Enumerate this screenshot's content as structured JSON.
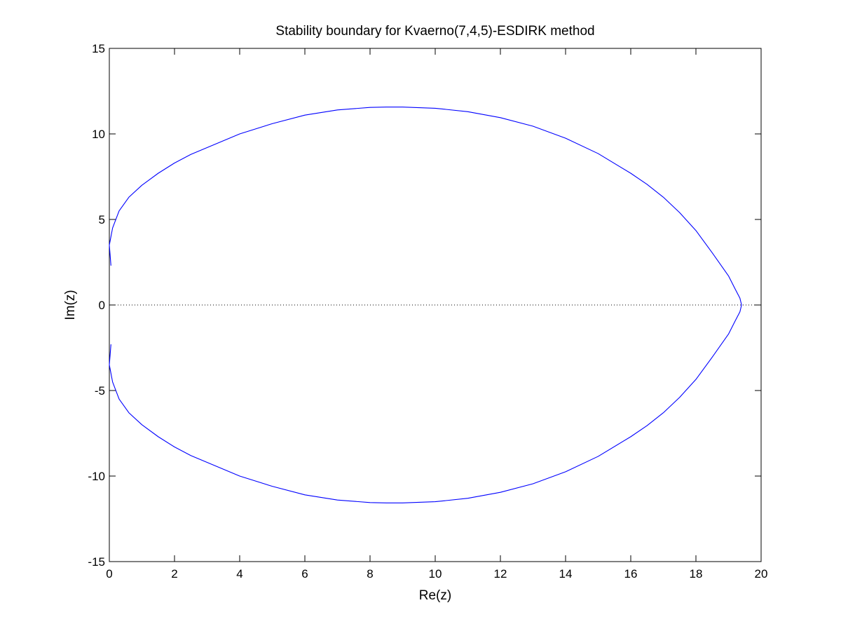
{
  "chart_data": {
    "type": "line",
    "title": "Stability boundary for Kvaerno(7,4,5)-ESDIRK method",
    "xlabel": "Re(z)",
    "ylabel": "Im(z)",
    "xlim": [
      0,
      20
    ],
    "ylim": [
      -15,
      15
    ],
    "xticks": [
      0,
      2,
      4,
      6,
      8,
      10,
      12,
      14,
      16,
      18,
      20
    ],
    "yticks": [
      -15,
      -10,
      -5,
      0,
      5,
      10,
      15
    ],
    "xtick_labels": [
      "0",
      "2",
      "4",
      "6",
      "8",
      "10",
      "12",
      "14",
      "16",
      "18",
      "20"
    ],
    "ytick_labels": [
      "-15",
      "-10",
      "-5",
      "0",
      "5",
      "10",
      "15"
    ],
    "grid": false,
    "legend": "none",
    "colors": {
      "boundary": "#0000ff",
      "zero_line": "#000000",
      "axes": "#000000",
      "background": "#ffffff"
    },
    "series": [
      {
        "style": "solid",
        "x": [
          0.05,
          0.0,
          0.1,
          0.3,
          0.6,
          1.0,
          1.5,
          2.0,
          2.5,
          3.0,
          3.5,
          4.0,
          5.0,
          6.0,
          7.0,
          8.0,
          8.5,
          9.0,
          10.0,
          11.0,
          12.0,
          13.0,
          14.0,
          15.0,
          16.0,
          16.5,
          17.0,
          17.5,
          18.0,
          18.5,
          19.0,
          19.2,
          19.35,
          19.4,
          19.35,
          19.2,
          19.0,
          18.5,
          18.0,
          17.5,
          17.0,
          16.5,
          16.0,
          15.0,
          14.0,
          13.0,
          12.0,
          11.0,
          10.0,
          9.0,
          8.5,
          8.0,
          7.0,
          6.0,
          5.0,
          4.0,
          3.5,
          3.0,
          2.5,
          2.0,
          1.5,
          1.0,
          0.6,
          0.3,
          0.1,
          0.0,
          0.05
        ],
        "y": [
          2.3,
          3.5,
          4.5,
          5.5,
          6.3,
          7.0,
          7.7,
          8.3,
          8.8,
          9.2,
          9.6,
          10.0,
          10.6,
          11.1,
          11.4,
          11.55,
          11.57,
          11.57,
          11.5,
          11.3,
          10.95,
          10.45,
          9.75,
          8.85,
          7.7,
          7.05,
          6.3,
          5.4,
          4.35,
          3.05,
          1.7,
          0.95,
          0.4,
          0.0,
          -0.4,
          -0.95,
          -1.7,
          -3.05,
          -4.35,
          -5.4,
          -6.3,
          -7.05,
          -7.7,
          -8.85,
          -9.75,
          -10.45,
          -10.95,
          -11.3,
          -11.5,
          -11.57,
          -11.57,
          -11.55,
          -11.4,
          -11.1,
          -10.6,
          -10.0,
          -9.6,
          -9.2,
          -8.8,
          -8.3,
          -7.7,
          -7.0,
          -6.3,
          -5.5,
          -4.5,
          -3.5,
          -2.3
        ]
      },
      {
        "style": "dotted",
        "x": [
          0,
          20
        ],
        "y": [
          0,
          0
        ]
      }
    ]
  }
}
